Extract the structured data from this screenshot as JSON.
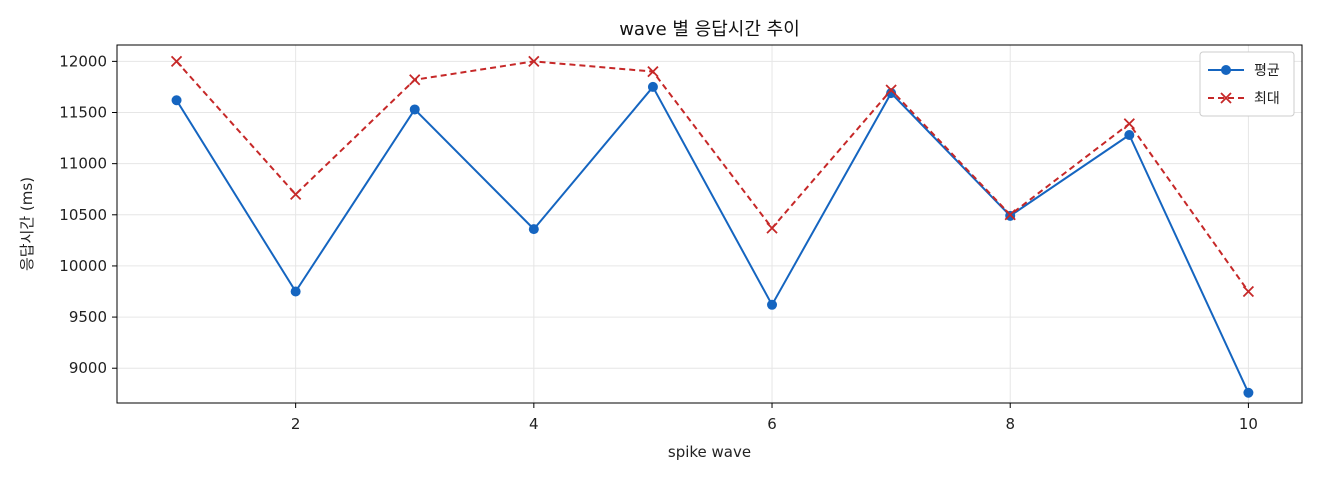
{
  "chart_data": {
    "type": "line",
    "title": "wave 별 응답시간 추이",
    "xlabel": "spike wave",
    "ylabel": "응답시간 (ms)",
    "x": [
      1,
      2,
      3,
      4,
      5,
      6,
      7,
      8,
      9,
      10
    ],
    "xlim": [
      0.5,
      10.45
    ],
    "ylim": [
      8660,
      12160
    ],
    "xticks": [
      2,
      4,
      6,
      8,
      10
    ],
    "yticks": [
      9000,
      9500,
      10000,
      10500,
      11000,
      11500,
      12000
    ],
    "grid": true,
    "legend_position": "top-right",
    "series": [
      {
        "name": "평균",
        "color": "#1565c0",
        "marker": "circle",
        "line_style": "solid",
        "values": [
          11620,
          9750,
          11530,
          10360,
          11750,
          9620,
          11690,
          10490,
          11280,
          8760
        ]
      },
      {
        "name": "최대",
        "color": "#c62828",
        "marker": "x",
        "line_style": "dashed",
        "values": [
          12000,
          10700,
          11820,
          12000,
          11900,
          10370,
          11720,
          10500,
          11390,
          9750
        ]
      }
    ]
  }
}
